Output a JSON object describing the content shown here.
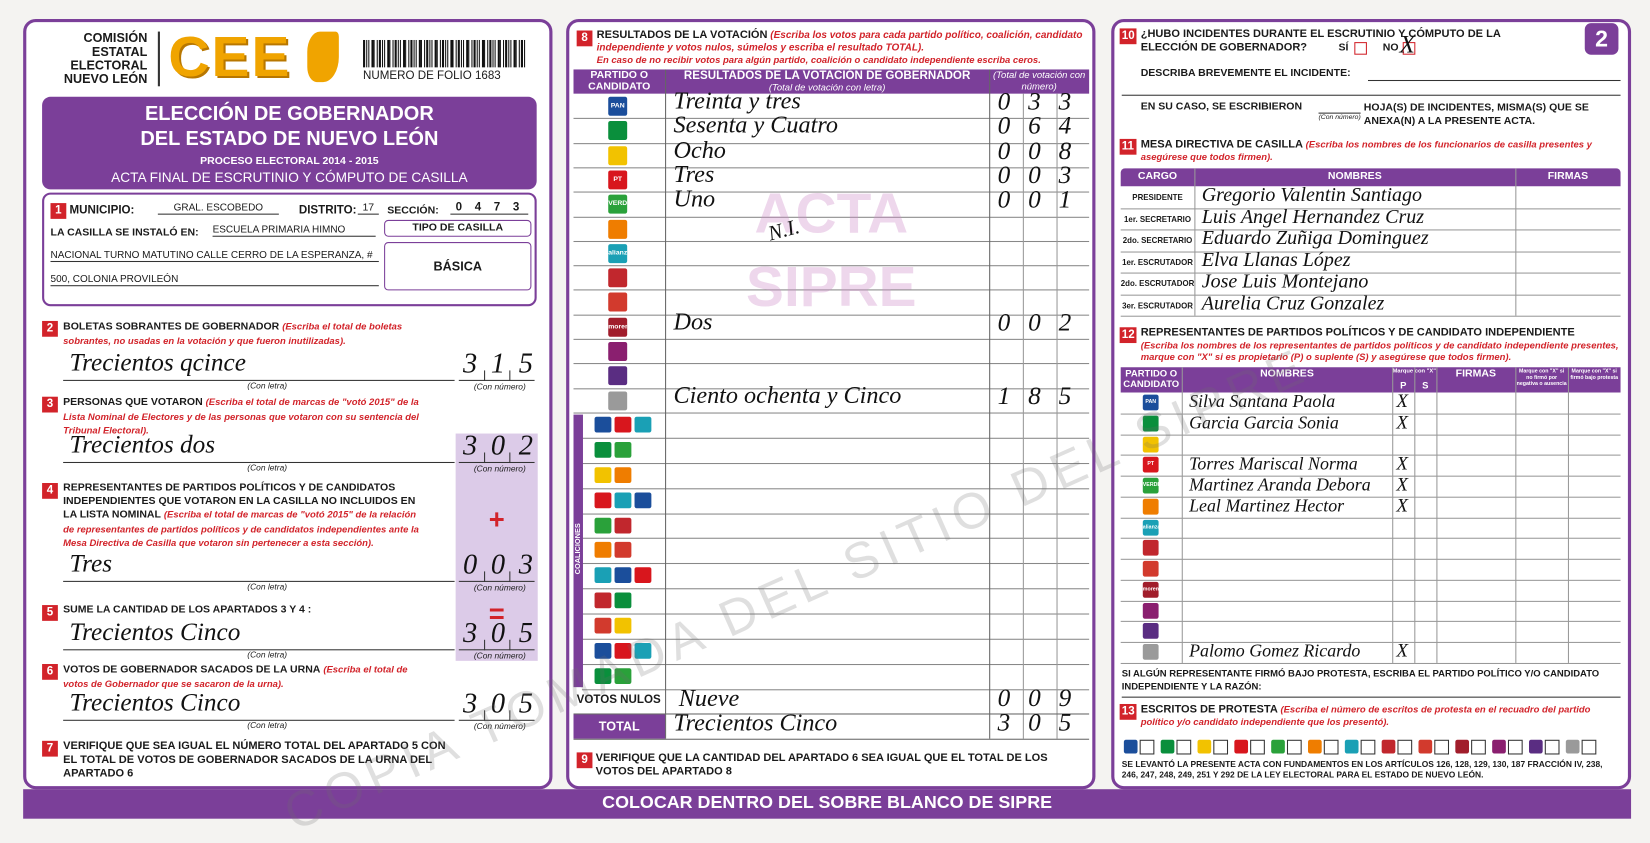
{
  "header": {
    "org": [
      "COMISIÓN",
      "ESTATAL",
      "ELECTORAL",
      "NUEVO LEÓN"
    ],
    "logo": "CEE",
    "folio": "NUMERO DE FOLIO 1683",
    "page": "2"
  },
  "banner": {
    "title": [
      "ELECCIÓN DE GOBERNADOR",
      "DEL ESTADO DE NUEVO LEÓN"
    ],
    "process": "PROCESO ELECTORAL  2014 - 2015",
    "subtitle": "ACTA FINAL DE ESCRUTINIO Y CÓMPUTO DE CASILLA"
  },
  "s1": {
    "num": "1",
    "municipio_label": "MUNICIPIO:",
    "municipio": "GRAL. ESCOBEDO",
    "distrito_label": "DISTRITO:",
    "distrito": "17",
    "seccion_label": "SECCIÓN:",
    "seccion": "0473",
    "casilla_label": "LA CASILLA SE INSTALÓ EN:",
    "address": [
      "ESCUELA PRIMARIA HIMNO",
      "NACIONAL TURNO MATUTINO CALLE CERRO DE LA ESPERANZA, #",
      "500, COLONIA PROVILEÓN"
    ],
    "tipo_label": "TIPO DE CASILLA",
    "tipo": "BÁSICA"
  },
  "left_sections": [
    {
      "num": "2",
      "heading": "BOLETAS SOBRANTES DE GOBERNADOR",
      "note": "(Escriba el total de boletas sobrantes, no usadas en la votación y que fueron inutilizadas).",
      "written": "Trecientos qcince",
      "number": "315",
      "hint_letter": "(Con letra)",
      "hint_number": "(Con número)"
    },
    {
      "num": "3",
      "heading": "PERSONAS QUE VOTARON",
      "note": "(Escriba el total de marcas de \"votó 2015\" de la Lista Nominal de Electores y de las personas que votaron con su sentencia del Tribunal Electoral).",
      "written": "Trecientos dos",
      "number": "302",
      "hint_letter": "(Con letra)",
      "hint_number": "(Con número)"
    },
    {
      "num": "4",
      "heading": "REPRESENTANTES DE PARTIDOS POLÍTICOS Y DE CANDIDATOS INDEPENDIENTES QUE VOTARON EN LA CASILLA NO INCLUIDOS EN LA LISTA NOMINAL",
      "note": "(Escriba el total de marcas de \"votó 2015\" de la relación de representantes de partidos políticos y de candidatos independientes ante la Mesa Directiva de Casilla que votaron sin pertenecer a esta sección).",
      "written": "Tres",
      "number": "003",
      "hint_letter": "(Con letra)",
      "hint_number": "(Con número)",
      "sign": "+"
    },
    {
      "num": "5",
      "heading": "SUME LA CANTIDAD DE LOS APARTADOS 3 Y 4 :",
      "written": "Trecientos Cinco",
      "number": "305",
      "hint_letter": "(Con letra)",
      "hint_number": "(Con número)",
      "sign": "="
    },
    {
      "num": "6",
      "heading": "VOTOS DE GOBERNADOR SACADOS DE LA URNA",
      "note": "(Escriba el total de votos de Gobernador que se sacaron de la urna).",
      "written": "Trecientos Cinco",
      "number": "305",
      "hint_letter": "(Con letra)",
      "hint_number": "(Con número)"
    }
  ],
  "s7": {
    "num": "7",
    "text": "VERIFIQUE QUE SEA IGUAL EL NÚMERO TOTAL DEL APARTADO 5 CON EL TOTAL DE VOTOS DE GOBERNADOR SACADOS DE LA URNA DEL APARTADO 6"
  },
  "party_colors": [
    "#1b4e9b",
    "#0a8f3c",
    "#f2c200",
    "#d8161d",
    "#2aa13a",
    "#ef7d00",
    "#1aa0b5",
    "#c1272d",
    "#d23a2d",
    "#a11d2b",
    "#8a1f6f",
    "#5a2d82",
    "#9a9a9a"
  ],
  "party_logos": [
    "PAN",
    null,
    null,
    "PT",
    "VERDE",
    null,
    "alianza",
    null,
    null,
    "morena",
    null,
    null,
    null
  ],
  "s8": {
    "num": "8",
    "heading": "RESULTADOS DE LA VOTACIÓN",
    "note": "(Escriba los votos para cada partido político, coalición, candidato independiente y votos nulos, súmelos y escriba el resultado TOTAL).",
    "note2": "En caso de no recibir votos para algún partido, coalición o candidato independiente escriba ceros.",
    "col_party": "PARTIDO O CANDIDATO",
    "col_letter": "RESULTADOS DE LA VOTACIÓN DE GOBERNADOR",
    "col_letter_hint": "(Total de votación con letra)",
    "col_number": "(Total de votación con número)",
    "rows": [
      {
        "written": "Treinta y tres",
        "number": "033"
      },
      {
        "written": "Sesenta y Cuatro",
        "number": "064"
      },
      {
        "written": "Ocho",
        "number": "008"
      },
      {
        "written": "Tres",
        "number": "003"
      },
      {
        "written": "Uno",
        "number": "001"
      },
      null,
      null,
      null,
      null,
      {
        "written": "Dos",
        "number": "002"
      },
      null,
      null,
      {
        "written": "Ciento ochenta y Cinco",
        "number": "185"
      }
    ],
    "coalition_label": "COALICIONES",
    "null_label": "VOTOS NULOS",
    "null_written": "Nueve",
    "null_number": "009",
    "total_label": "TOTAL",
    "total_written": "Trecientos Cinco",
    "total_number": "305",
    "watermark": [
      "ACTA",
      "SIPRE"
    ],
    "annotation": "N.I."
  },
  "s9": {
    "num": "9",
    "text": "VERIFIQUE QUE LA CANTIDAD DEL APARTADO 6 SEA IGUAL QUE EL TOTAL DE LOS VOTOS DEL APARTADO 8"
  },
  "s10": {
    "num": "10",
    "question": "¿HUBO INCIDENTES DURANTE EL ESCRUTINIO Y CÓMPUTO DE LA ELECCIÓN DE GOBERNADOR?",
    "yes": "SÍ",
    "no": "NO",
    "mark": "X",
    "describe": "DESCRIBA BREVEMENTE EL INCIDENTE:",
    "sheets_a": "EN SU CASO, SE ESCRIBIERON",
    "sheets_b": "HOJA(S) DE INCIDENTES, MISMA(S) QUE SE ANEXA(N) A LA PRESENTE ACTA.",
    "sheets_hint": "(Con número)"
  },
  "s11": {
    "num": "11",
    "heading": "MESA DIRECTIVA DE CASILLA",
    "note": "(Escriba los nombres de los funcionarios de casilla presentes y asegúrese que todos firmen).",
    "cols": [
      "CARGO",
      "NOMBRES",
      "FIRMAS"
    ],
    "rows": [
      {
        "role": "PRESIDENTE",
        "name": "Gregorio Valentin Santiago"
      },
      {
        "role": "1er. SECRETARIO",
        "name": "Luis Angel Hernandez Cruz"
      },
      {
        "role": "2do. SECRETARIO",
        "name": "Eduardo Zuñiga Dominguez"
      },
      {
        "role": "1er. ESCRUTADOR",
        "name": "Elva Llanas López"
      },
      {
        "role": "2do. ESCRUTADOR",
        "name": "Jose Luis Montejano"
      },
      {
        "role": "3er. ESCRUTADOR",
        "name": "Aurelia Cruz Gonzalez"
      }
    ]
  },
  "s12": {
    "num": "12",
    "heading": "REPRESENTANTES DE PARTIDOS POLÍTICOS Y DE CANDIDATO INDEPENDIENTE",
    "note": "(Escriba los nombres de los representantes de partidos políticos y de candidato independiente presentes, marque con \"X\" si es propietario (P) o suplente (S) y asegúrese que todos firmen).",
    "col_party": "PARTIDO O CANDIDATO",
    "col_names": "NOMBRES",
    "col_mark": "Marque con \"X\"",
    "col_p": "P",
    "col_s": "S",
    "col_sign": "FIRMAS",
    "col_refused": "Marque con \"X\" si no firmó por negativa o ausencia",
    "col_protest": "Marque con \"X\" si firmó bajo protesta",
    "rows": [
      {
        "name": "Silva Santana Paola",
        "mark": "X"
      },
      {
        "name": "Garcia Garcia Sonia",
        "mark": "X"
      },
      null,
      {
        "name": "Torres Mariscal Norma",
        "mark": "X"
      },
      {
        "name": "Martinez Aranda Debora",
        "mark": "X"
      },
      {
        "name": "Leal Martinez Hector",
        "mark": "X"
      },
      null,
      null,
      null,
      null,
      null,
      null,
      {
        "name": "Palomo Gomez Ricardo",
        "mark": "X"
      }
    ],
    "protest_note": "SI ALGÚN REPRESENTANTE FIRMÓ BAJO PROTESTA, ESCRIBA EL PARTIDO POLÍTICO Y/O CANDIDATO INDEPENDIENTE Y LA RAZÓN:"
  },
  "s13": {
    "num": "13",
    "heading": "ESCRITOS DE PROTESTA",
    "note": "(Escriba el número de escritos de protesta en el recuadro del partido político y/o candidato independiente que los presentó)."
  },
  "legal": "SE LEVANTÓ LA PRESENTE ACTA CON FUNDAMENTOS EN LOS ARTÍCULOS 126, 128, 129, 130, 187 FRACCIÓN IV, 238, 246, 247, 248, 249, 251 Y 292 DE LA LEY ELECTORAL PARA EL ESTADO DE NUEVO LEÓN.",
  "footer": "COLOCAR DENTRO DEL SOBRE BLANCO DE SIPRE",
  "watermark": "COPIA TOMADA DEL SITIO DEL SIPRE"
}
